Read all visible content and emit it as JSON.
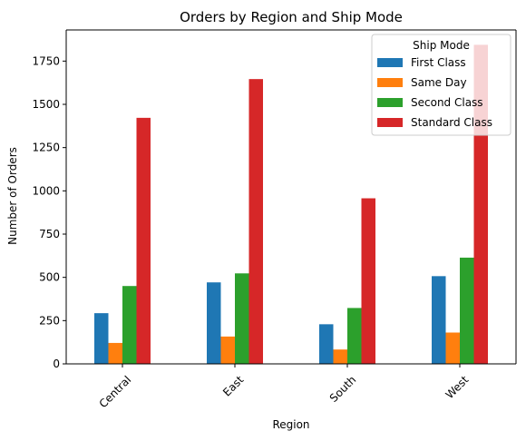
{
  "chart_data": {
    "type": "bar",
    "title": "Orders by Region and Ship Mode",
    "xlabel": "Region",
    "ylabel": "Number of Orders",
    "categories": [
      "Central",
      "East",
      "South",
      "West"
    ],
    "ylim": [
      0,
      1930
    ],
    "yticks": [
      0,
      250,
      500,
      750,
      1000,
      1250,
      1500,
      1750
    ],
    "legend": {
      "title": "Ship Mode",
      "position": "top-right"
    },
    "series": [
      {
        "name": "First Class",
        "color": "#1f77b4",
        "values": [
          293,
          471,
          229,
          507
        ]
      },
      {
        "name": "Same Day",
        "color": "#ff7f0e",
        "values": [
          121,
          158,
          83,
          181
        ]
      },
      {
        "name": "Second Class",
        "color": "#2ca02c",
        "values": [
          450,
          523,
          323,
          614
        ]
      },
      {
        "name": "Standard Class",
        "color": "#d62728",
        "values": [
          1422,
          1646,
          957,
          1844
        ]
      }
    ]
  }
}
